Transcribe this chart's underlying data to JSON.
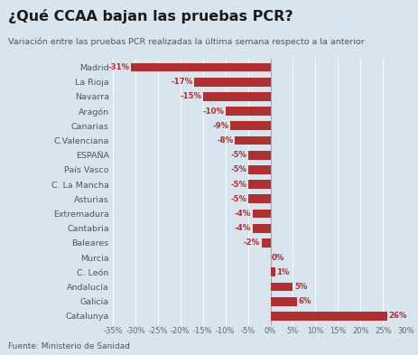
{
  "title": "¿Qué CCAA bajan las pruebas PCR?",
  "subtitle": "Variación entre las pruebas PCR realizadas la última semana respecto a la anterior",
  "source": "Fuente: Ministerio de Sanidad",
  "categories": [
    "Madrid",
    "La Rioja",
    "Navarra",
    "Aragón",
    "Canarias",
    "C.Valenciana",
    "ESPAÑA",
    "País Vasco",
    "C. La Mancha",
    "Asturias",
    "Extremadura",
    "Cantabria",
    "Baleares",
    "Murcia",
    "C. León",
    "Andalucía",
    "Galicia",
    "Catalunya"
  ],
  "values": [
    -31,
    -17,
    -15,
    -10,
    -9,
    -8,
    -5,
    -5,
    -5,
    -5,
    -4,
    -4,
    -2,
    0,
    1,
    5,
    6,
    26
  ],
  "bar_color": "#b03030",
  "bg_color": "#d8e4ee",
  "title_color": "#1a1a1a",
  "subtitle_color": "#555555",
  "label_color": "#b03030",
  "category_color": "#555555",
  "xlim": [
    -35,
    30
  ],
  "xticks": [
    -35,
    -30,
    -25,
    -20,
    -15,
    -10,
    -5,
    0,
    5,
    10,
    15,
    20,
    25,
    30
  ],
  "xtick_labels": [
    "-35%",
    "-30%",
    "-25%",
    "-20%",
    "-15%",
    "-10%",
    "-5%",
    "0%",
    "5%",
    "10%",
    "15%",
    "20%",
    "25%",
    "30%"
  ]
}
